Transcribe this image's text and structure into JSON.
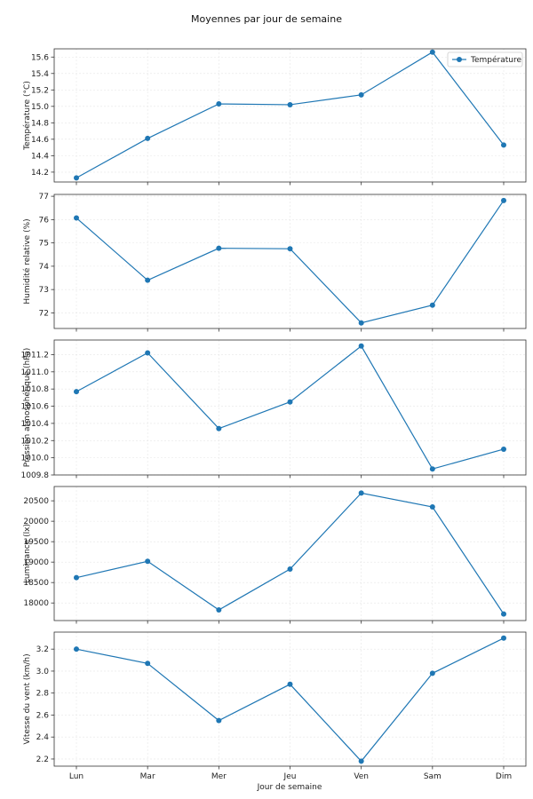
{
  "chart_data": {
    "type": "line",
    "title": "Moyennes par jour de semaine",
    "xlabel": "Jour de semaine",
    "categories": [
      "Lun",
      "Mar",
      "Mer",
      "Jeu",
      "Ven",
      "Sam",
      "Dim"
    ],
    "grid": true,
    "color": "#1f77b4",
    "panels": [
      {
        "ylabel": "Température (°C)",
        "legend": "Température",
        "legend_position": "top-right",
        "ylim": [
          14.08,
          15.7
        ],
        "yticks": [
          14.2,
          14.4,
          14.6,
          14.8,
          15.0,
          15.2,
          15.4,
          15.6
        ],
        "ytick_labels": [
          "14.2",
          "14.4",
          "14.6",
          "14.8",
          "15.0",
          "15.2",
          "15.4",
          "15.6"
        ],
        "values": [
          14.13,
          14.61,
          15.03,
          15.02,
          15.14,
          15.66,
          14.53
        ]
      },
      {
        "ylabel": "Humidité relative (%)",
        "ylim": [
          71.33,
          77.08
        ],
        "yticks": [
          72,
          73,
          74,
          75,
          76,
          77
        ],
        "ytick_labels": [
          "72",
          "73",
          "74",
          "75",
          "76",
          "77"
        ],
        "values": [
          76.07,
          73.4,
          74.77,
          74.75,
          71.57,
          72.33,
          76.82
        ]
      },
      {
        "ylabel": "Pression atmosphérique (hPa)",
        "ylim": [
          1009.8,
          1011.37
        ],
        "yticks": [
          1009.8,
          1010.0,
          1010.2,
          1010.4,
          1010.6,
          1010.8,
          1011.0,
          1011.2
        ],
        "ytick_labels": [
          "1009.8",
          "1010.0",
          "1010.2",
          "1010.4",
          "1010.6",
          "1010.8",
          "1011.0",
          "1011.2"
        ],
        "values": [
          1010.77,
          1011.22,
          1010.34,
          1010.65,
          1011.3,
          1009.87,
          1010.1
        ]
      },
      {
        "ylabel": "Luminance (lx)",
        "ylim": [
          17570,
          20850
        ],
        "yticks": [
          18000,
          18500,
          19000,
          19500,
          20000,
          20500
        ],
        "ytick_labels": [
          "18000",
          "18500",
          "19000",
          "19500",
          "20000",
          "20500"
        ],
        "values": [
          18620,
          19020,
          17830,
          18830,
          20690,
          20350,
          17730
        ]
      },
      {
        "ylabel": "Vitesse du vent (km/h)",
        "ylim": [
          2.135,
          3.355
        ],
        "yticks": [
          2.2,
          2.4,
          2.6,
          2.8,
          3.0,
          3.2
        ],
        "ytick_labels": [
          "2.2",
          "2.4",
          "2.6",
          "2.8",
          "3.0",
          "3.2"
        ],
        "values": [
          3.2,
          3.07,
          2.55,
          2.88,
          2.18,
          2.98,
          3.3
        ]
      }
    ]
  }
}
